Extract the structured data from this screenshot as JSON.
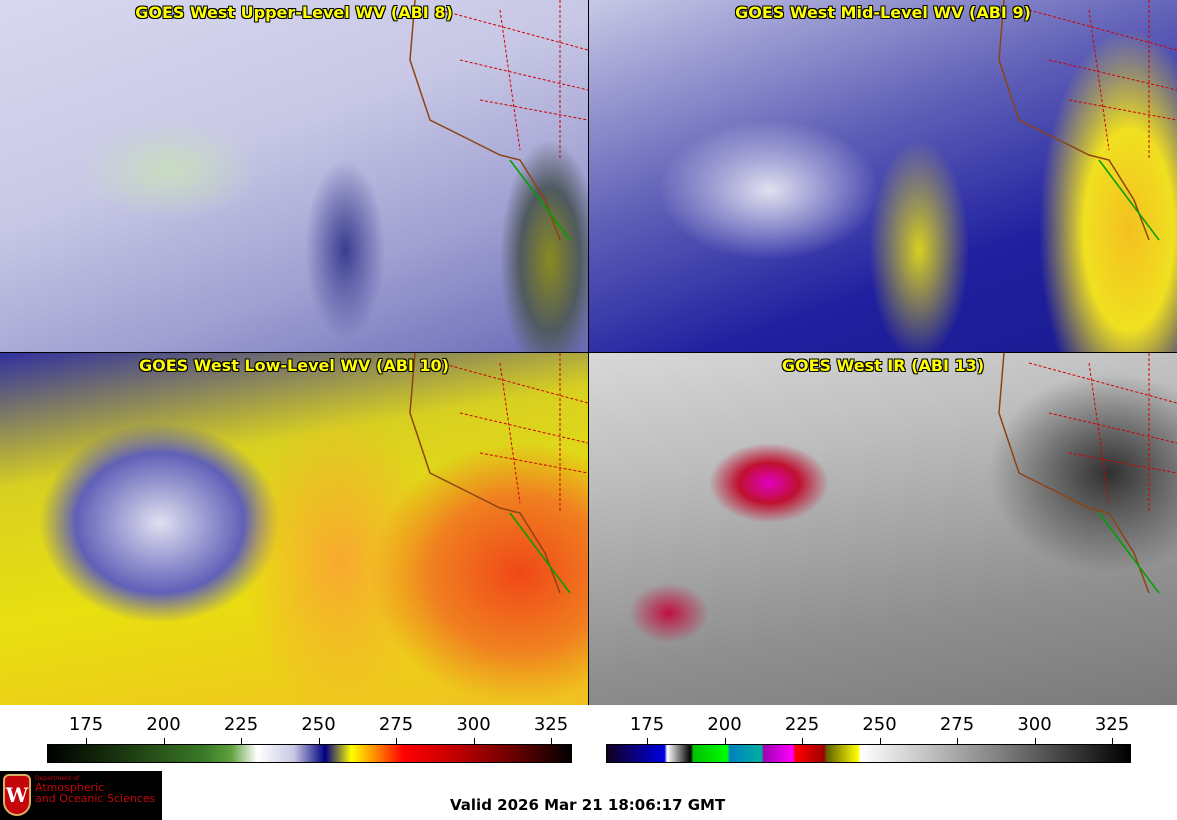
{
  "panels": [
    {
      "title": "GOES West Upper-Level WV (ABI 8)"
    },
    {
      "title": "GOES West Mid-Level WV (ABI 9)"
    },
    {
      "title": "GOES West Low-Level WV (ABI 10)"
    },
    {
      "title": "GOES West IR (ABI 13)"
    }
  ],
  "colorbars": [
    {
      "name": "water-vapor",
      "ticks": [
        "175",
        "200",
        "225",
        "250",
        "275",
        "300",
        "325"
      ]
    },
    {
      "name": "infrared",
      "ticks": [
        "175",
        "200",
        "225",
        "250",
        "275",
        "300",
        "325"
      ]
    }
  ],
  "logo": {
    "line1": "Department of",
    "line2": "Atmospheric",
    "line3": "and Oceanic Sciences",
    "seal_letter": "W"
  },
  "valid_time": "Valid 2026 Mar 21 18:06:17 GMT",
  "colors": {
    "title": "#ffff00",
    "border_state": "#d00000",
    "coast": "#8b4513"
  }
}
